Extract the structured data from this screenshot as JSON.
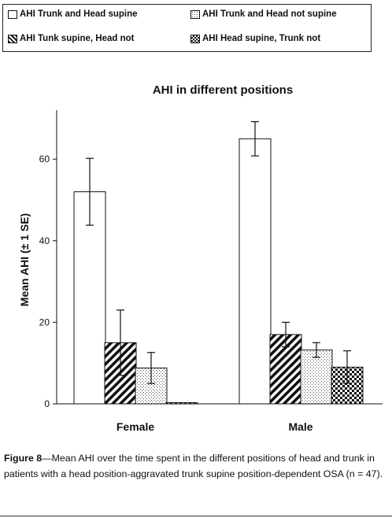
{
  "chart_data": {
    "type": "bar",
    "title": "AHI in different positions",
    "ylabel": "Mean AHI (± 1 SE)",
    "xlabel": "",
    "categories": [
      "Female",
      "Male"
    ],
    "ylim": [
      0,
      72
    ],
    "yticks": [
      0,
      20,
      40,
      60
    ],
    "grid": false,
    "legend_position": "top",
    "series": [
      {
        "name": "AHI Trunk and Head supine",
        "pattern": "white",
        "values": [
          52,
          65
        ],
        "errors": [
          8.2,
          4.2
        ]
      },
      {
        "name": "AHI Tunk supine, Head not",
        "pattern": "diagonal",
        "values": [
          15,
          17
        ],
        "errors": [
          8,
          3
        ]
      },
      {
        "name": "AHI Trunk and Head not supine",
        "pattern": "dotted",
        "values": [
          8.8,
          13.2
        ],
        "errors": [
          3.8,
          1.8
        ]
      },
      {
        "name": "AHI Head supine, Trunk not",
        "pattern": "checker",
        "values": [
          0.3,
          9
        ],
        "errors": [
          0,
          4
        ]
      }
    ]
  },
  "legend_order": [
    0,
    2,
    1,
    3
  ],
  "caption": {
    "label": "Figure 8",
    "text": "—Mean AHI over the time spent in the different positions of head and trunk in patients with a head position-aggravated trunk supine position-dependent OSA (n = 47)."
  },
  "colors": {
    "axis": "#111111",
    "bar_fill": "#ffffff",
    "pattern": "#111111"
  }
}
